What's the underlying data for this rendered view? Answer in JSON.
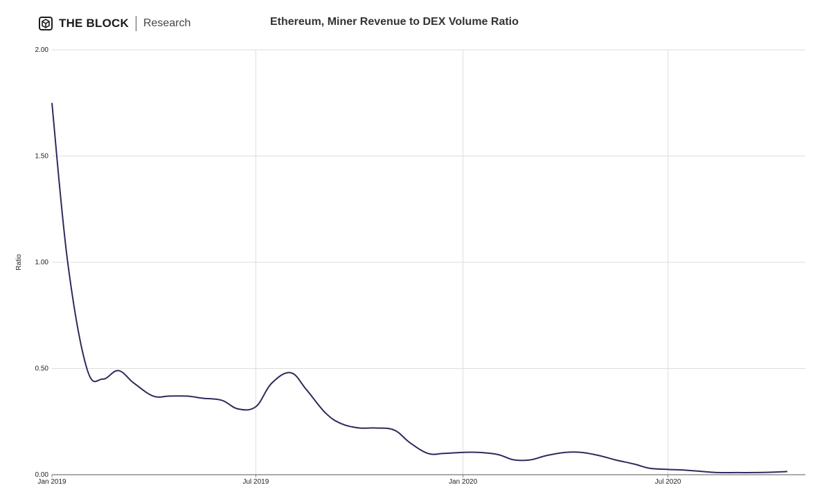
{
  "brand": {
    "name": "THE BLOCK",
    "subtitle": "Research",
    "icon": "the-block-cube-logo"
  },
  "chart_data": {
    "type": "line",
    "title": "Ethereum, Miner Revenue to DEX Volume Ratio",
    "xlabel": "",
    "ylabel": "Ratio",
    "ylim": [
      0,
      2
    ],
    "yticks": [
      "0.00",
      "0.50",
      "1.00",
      "1.50",
      "2.00"
    ],
    "xticks": [
      "Jan 2019",
      "Jul 2019",
      "Jan 2020",
      "Jul 2020"
    ],
    "grid": true,
    "series": [
      {
        "color": "#2b2b5c",
        "x": [
          "2019-01-01",
          "2019-01-15",
          "2019-02-01",
          "2019-02-15",
          "2019-03-01",
          "2019-03-15",
          "2019-04-01",
          "2019-04-15",
          "2019-05-01",
          "2019-05-15",
          "2019-06-01",
          "2019-06-15",
          "2019-07-01",
          "2019-07-15",
          "2019-08-01",
          "2019-08-15",
          "2019-09-01",
          "2019-09-15",
          "2019-10-01",
          "2019-10-15",
          "2019-11-01",
          "2019-11-15",
          "2019-12-01",
          "2019-12-15",
          "2020-01-01",
          "2020-01-15",
          "2020-02-01",
          "2020-02-15",
          "2020-03-01",
          "2020-03-15",
          "2020-04-01",
          "2020-04-15",
          "2020-05-01",
          "2020-05-15",
          "2020-06-01",
          "2020-06-15",
          "2020-07-01",
          "2020-07-15",
          "2020-08-01",
          "2020-08-15",
          "2020-09-01",
          "2020-09-15",
          "2020-10-01",
          "2020-10-15"
        ],
        "y": [
          1.75,
          1.0,
          0.5,
          0.45,
          0.49,
          0.43,
          0.37,
          0.37,
          0.37,
          0.36,
          0.35,
          0.31,
          0.32,
          0.43,
          0.48,
          0.4,
          0.29,
          0.24,
          0.22,
          0.22,
          0.21,
          0.15,
          0.1,
          0.1,
          0.105,
          0.105,
          0.095,
          0.07,
          0.07,
          0.09,
          0.105,
          0.105,
          0.09,
          0.07,
          0.05,
          0.03,
          0.025,
          0.022,
          0.015,
          0.01,
          0.01,
          0.01,
          0.012,
          0.015
        ]
      }
    ]
  }
}
